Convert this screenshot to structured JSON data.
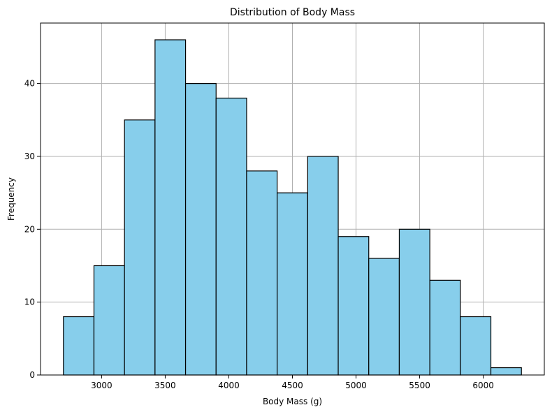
{
  "chart_data": {
    "type": "bar",
    "title": "Distribution of Body Mass",
    "xlabel": "Body Mass (g)",
    "ylabel": "Frequency",
    "bins": [
      {
        "start": 2700,
        "end": 2940,
        "count": 8
      },
      {
        "start": 2940,
        "end": 3180,
        "count": 15
      },
      {
        "start": 3180,
        "end": 3420,
        "count": 35
      },
      {
        "start": 3420,
        "end": 3660,
        "count": 46
      },
      {
        "start": 3660,
        "end": 3900,
        "count": 40
      },
      {
        "start": 3900,
        "end": 4140,
        "count": 38
      },
      {
        "start": 4140,
        "end": 4380,
        "count": 28
      },
      {
        "start": 4380,
        "end": 4620,
        "count": 25
      },
      {
        "start": 4620,
        "end": 4860,
        "count": 30
      },
      {
        "start": 4860,
        "end": 5100,
        "count": 19
      },
      {
        "start": 5100,
        "end": 5340,
        "count": 16
      },
      {
        "start": 5340,
        "end": 5580,
        "count": 20
      },
      {
        "start": 5580,
        "end": 5820,
        "count": 13
      },
      {
        "start": 5820,
        "end": 6060,
        "count": 8
      },
      {
        "start": 6060,
        "end": 6300,
        "count": 1
      }
    ],
    "xlim": [
      2520,
      6480
    ],
    "ylim": [
      0,
      48.3
    ],
    "xticks": [
      3000,
      3500,
      4000,
      4500,
      5000,
      5500,
      6000
    ],
    "yticks": [
      0,
      10,
      20,
      30,
      40
    ],
    "grid": true,
    "colors": {
      "bar_fill": "#87ceeb",
      "bar_edge": "#000000",
      "grid": "#b0b0b0"
    }
  }
}
